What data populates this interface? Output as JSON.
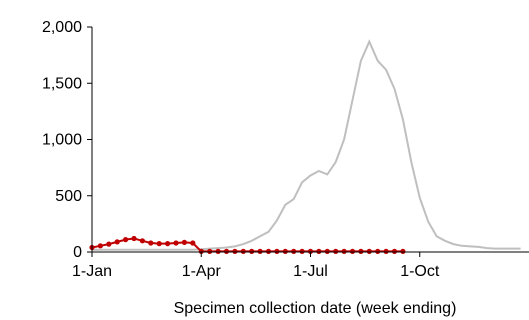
{
  "chart_data": {
    "type": "line",
    "title": "",
    "xlabel": "Specimen collection date (week ending)",
    "ylabel": "",
    "ylim": [
      0,
      2000
    ],
    "grid": false,
    "legend": "none",
    "x_tick_labels": [
      "1-Jan",
      "1-Apr",
      "1-Jul",
      "1-Oct"
    ],
    "y_tick_labels": [
      "0",
      "500",
      "1,000",
      "1,500",
      "2,000"
    ],
    "y_ticks": [
      0,
      500,
      1000,
      1500,
      2000
    ],
    "x_tick_weeks": [
      0,
      13,
      26,
      39
    ],
    "x_range_weeks": [
      0,
      52
    ],
    "weeks": [
      0,
      1,
      2,
      3,
      4,
      5,
      6,
      7,
      8,
      9,
      10,
      11,
      12,
      13,
      14,
      15,
      16,
      17,
      18,
      19,
      20,
      21,
      22,
      23,
      24,
      25,
      26,
      27,
      28,
      29,
      30,
      31,
      32,
      33,
      34,
      35,
      36,
      37,
      38,
      39,
      40,
      41,
      42,
      43,
      44,
      45,
      46,
      47,
      48,
      49,
      50,
      51
    ],
    "series": [
      {
        "color": "#bfbfbf",
        "marker": "none",
        "values": [
          20,
          20,
          20,
          20,
          20,
          20,
          20,
          20,
          20,
          20,
          20,
          20,
          20,
          25,
          30,
          35,
          40,
          50,
          70,
          100,
          140,
          180,
          280,
          420,
          470,
          620,
          680,
          720,
          690,
          800,
          1000,
          1350,
          1700,
          1870,
          1700,
          1620,
          1450,
          1180,
          800,
          480,
          270,
          140,
          100,
          70,
          55,
          50,
          45,
          35,
          30,
          30,
          30,
          30
        ]
      },
      {
        "color": "#c00000",
        "marker": "circle",
        "values": [
          40,
          55,
          70,
          90,
          110,
          120,
          100,
          80,
          75,
          75,
          80,
          85,
          80,
          5,
          5,
          5,
          5,
          5,
          5,
          5,
          5,
          5,
          5,
          5,
          5,
          5,
          5,
          5,
          5,
          5,
          5,
          5,
          5,
          5,
          5,
          5,
          5,
          5,
          null,
          null,
          null,
          null,
          null,
          null,
          null,
          null,
          null,
          null,
          null,
          null,
          null,
          null
        ]
      }
    ]
  }
}
